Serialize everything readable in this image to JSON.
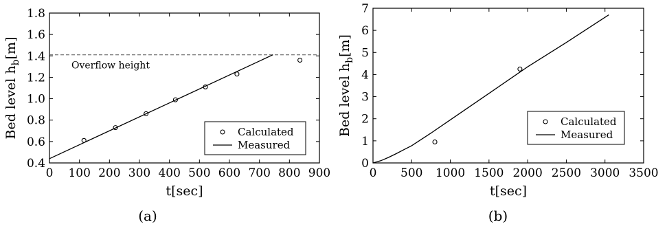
{
  "chart_data": [
    {
      "type": "line",
      "panel_label": "(a)",
      "xlabel": "t[sec]",
      "ylabel": "Bed level h_b[m]",
      "xlim": [
        0,
        900
      ],
      "ylim": [
        0.4,
        1.8
      ],
      "xticks": [
        "0",
        "100",
        "200",
        "300",
        "400",
        "500",
        "600",
        "700",
        "800",
        "900"
      ],
      "yticks": [
        "0.4",
        "0.6",
        "0.8",
        "1.0",
        "1.2",
        "1.4",
        "1.6",
        "1.8"
      ],
      "grid": false,
      "legend_position": "lower-right",
      "series": [
        {
          "name": "Calculated",
          "kind": "scatter",
          "marker": "open-circle",
          "x": [
            115,
            220,
            322,
            420,
            520,
            625,
            835
          ],
          "y": [
            0.61,
            0.73,
            0.86,
            0.99,
            1.11,
            1.23,
            1.36
          ]
        },
        {
          "name": "Measured",
          "kind": "line",
          "x": [
            0,
            745
          ],
          "y": [
            0.44,
            1.41
          ]
        }
      ],
      "reference_lines": [
        {
          "label": "Overflow height",
          "y": 1.41,
          "style": "dashed"
        }
      ]
    },
    {
      "type": "line",
      "panel_label": "(b)",
      "xlabel": "t[sec]",
      "ylabel": "Bed level h_b[m]",
      "xlim": [
        0,
        3500
      ],
      "ylim": [
        0,
        7
      ],
      "xticks": [
        "0",
        "500",
        "1000",
        "1500",
        "2000",
        "2500",
        "3000",
        "3500"
      ],
      "yticks": [
        "0",
        "1",
        "2",
        "3",
        "4",
        "5",
        "6",
        "7"
      ],
      "grid": false,
      "legend_position": "center-right",
      "series": [
        {
          "name": "Calculated",
          "kind": "scatter",
          "marker": "open-circle",
          "x": [
            800,
            1900
          ],
          "y": [
            0.95,
            4.25
          ]
        },
        {
          "name": "Measured",
          "kind": "line",
          "x": [
            0,
            100,
            200,
            300,
            400,
            500,
            750,
            1000,
            1500,
            2000,
            2500,
            3050
          ],
          "y": [
            0,
            0.1,
            0.25,
            0.42,
            0.6,
            0.78,
            1.35,
            1.95,
            3.15,
            4.35,
            5.45,
            6.7
          ]
        }
      ]
    }
  ]
}
